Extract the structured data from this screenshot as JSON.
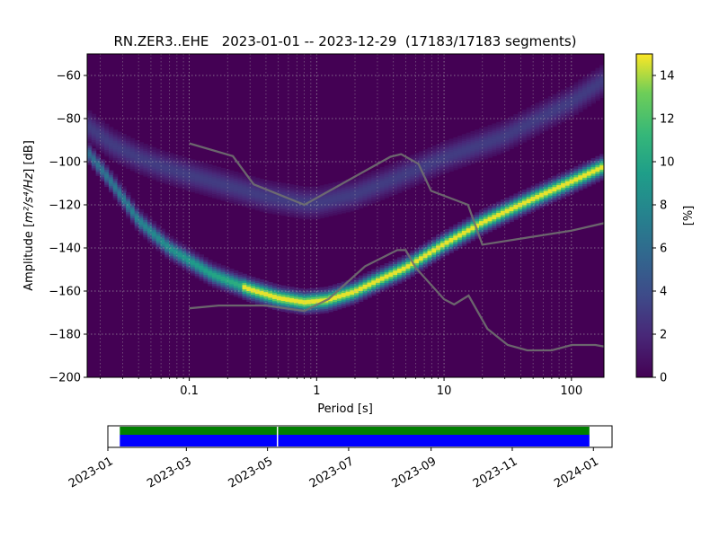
{
  "chart_data": {
    "type": "heatmap",
    "title": "RN.ZER3..EHE   2023-01-01 -- 2023-12-29  (17183/17183 segments)",
    "xlabel": "Period [s]",
    "ylabel": "Amplitude [",
    "ylabel_unit": "m²/s⁴/Hz",
    "ylabel_suffix": "] [dB]",
    "x_scale": "log",
    "xlim": [
      0.0158,
      180
    ],
    "ylim": [
      -200,
      -50
    ],
    "x_ticks": [
      {
        "value": 0.1,
        "label": "0.1"
      },
      {
        "value": 1,
        "label": "1"
      },
      {
        "value": 10,
        "label": "10"
      },
      {
        "value": 100,
        "label": "100"
      }
    ],
    "y_ticks": [
      {
        "value": -200,
        "label": "−200"
      },
      {
        "value": -180,
        "label": "−180"
      },
      {
        "value": -160,
        "label": "−160"
      },
      {
        "value": -140,
        "label": "−140"
      },
      {
        "value": -120,
        "label": "−120"
      },
      {
        "value": -100,
        "label": "−100"
      },
      {
        "value": -80,
        "label": "−80"
      },
      {
        "value": -60,
        "label": "−60"
      }
    ],
    "grid": true,
    "colorbar": {
      "label": "[%]",
      "range": [
        0,
        15
      ],
      "colormap": "viridis",
      "ticks": [
        {
          "value": 0,
          "label": "0"
        },
        {
          "value": 2,
          "label": "2"
        },
        {
          "value": 4,
          "label": "4"
        },
        {
          "value": 6,
          "label": "6"
        },
        {
          "value": 8,
          "label": "8"
        },
        {
          "value": 10,
          "label": "10"
        },
        {
          "value": 12,
          "label": "12"
        },
        {
          "value": 14,
          "label": "14"
        }
      ]
    },
    "density_ridges": [
      {
        "points": [
          [
            0.0158,
            -83
          ],
          [
            0.025,
            -92
          ],
          [
            0.04,
            -98
          ],
          [
            0.06,
            -102
          ],
          [
            0.1,
            -106
          ],
          [
            0.2,
            -111
          ],
          [
            0.4,
            -116
          ],
          [
            0.8,
            -119
          ],
          [
            1,
            -119
          ],
          [
            2,
            -115
          ],
          [
            4,
            -108
          ],
          [
            10,
            -98
          ],
          [
            30,
            -88
          ],
          [
            100,
            -72
          ],
          [
            180,
            -62
          ]
        ],
        "peak": 3.0,
        "spread": 4
      },
      {
        "points": [
          [
            0.0158,
            -95
          ],
          [
            0.025,
            -110
          ],
          [
            0.04,
            -127
          ],
          [
            0.07,
            -140
          ],
          [
            0.15,
            -152
          ],
          [
            0.3,
            -159
          ],
          [
            0.5,
            -163
          ],
          [
            0.8,
            -165
          ],
          [
            1.2,
            -164
          ],
          [
            2,
            -160
          ],
          [
            3,
            -155
          ],
          [
            5,
            -149
          ],
          [
            10,
            -138
          ],
          [
            20,
            -128
          ],
          [
            50,
            -117
          ],
          [
            100,
            -109
          ],
          [
            180,
            -102
          ]
        ],
        "peak": 15.0,
        "spread": 2.5
      }
    ],
    "noise_models": [
      {
        "points": [
          [
            0.1,
            -91.5
          ],
          [
            0.22,
            -97.4
          ],
          [
            0.32,
            -110.5
          ],
          [
            0.8,
            -120
          ],
          [
            3.8,
            -97.7
          ],
          [
            4.6,
            -96.5
          ],
          [
            6.3,
            -101
          ],
          [
            7.9,
            -113.5
          ],
          [
            15.4,
            -120
          ],
          [
            20,
            -138.5
          ],
          [
            100,
            -132
          ],
          [
            180,
            -128.5
          ]
        ],
        "color": "#707070"
      },
      {
        "points": [
          [
            0.1,
            -168
          ],
          [
            0.17,
            -166.7
          ],
          [
            0.4,
            -166.7
          ],
          [
            0.8,
            -169.2
          ],
          [
            1.24,
            -163.7
          ],
          [
            2.4,
            -148.5
          ],
          [
            4.3,
            -141
          ],
          [
            5,
            -141
          ],
          [
            6,
            -149.2
          ],
          [
            10,
            -163.8
          ],
          [
            12,
            -166.2
          ],
          [
            15.6,
            -162.1
          ],
          [
            21.9,
            -177.5
          ],
          [
            31.6,
            -185
          ],
          [
            45,
            -187.5
          ],
          [
            70,
            -187.5
          ],
          [
            101,
            -185
          ],
          [
            154,
            -185
          ],
          [
            180,
            -185.7
          ]
        ],
        "color": "#707070"
      }
    ],
    "coverage": {
      "range": [
        "2023-01-01",
        "2024-01-15"
      ],
      "date_ticks": [
        {
          "value": "2023-01-01",
          "label": "2023-01"
        },
        {
          "value": "2023-03-01",
          "label": "2023-03"
        },
        {
          "value": "2023-05-01",
          "label": "2023-05"
        },
        {
          "value": "2023-07-01",
          "label": "2023-07"
        },
        {
          "value": "2023-09-01",
          "label": "2023-09"
        },
        {
          "value": "2023-11-01",
          "label": "2023-11"
        },
        {
          "value": "2024-01-01",
          "label": "2024-01"
        }
      ],
      "segments": [
        {
          "start": "2023-01-10",
          "end": "2023-05-08",
          "color": "#0000ff"
        },
        {
          "start": "2023-05-09",
          "end": "2023-12-29",
          "color": "#0000ff"
        }
      ],
      "processed": [
        {
          "start": "2023-01-10",
          "end": "2023-05-08",
          "color": "#008000"
        },
        {
          "start": "2023-05-09",
          "end": "2023-12-29",
          "color": "#008000"
        }
      ]
    }
  }
}
